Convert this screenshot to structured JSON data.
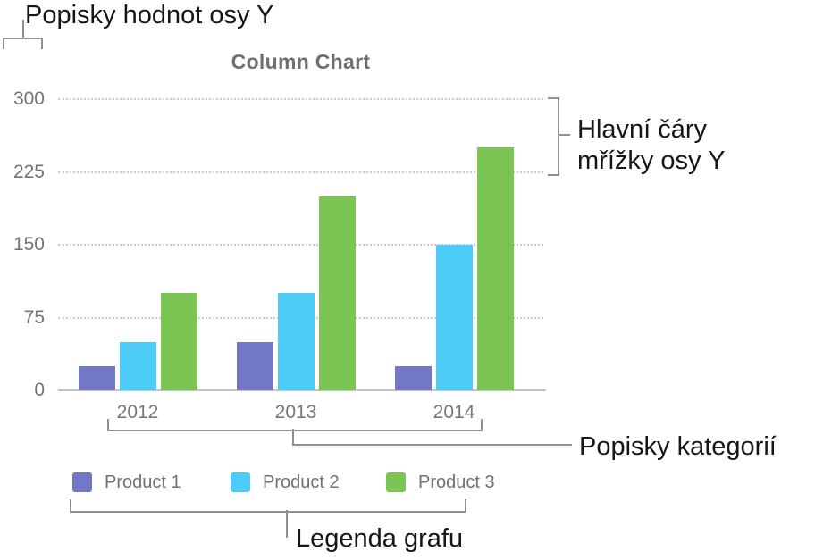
{
  "annotations": {
    "y_value_labels": "Popisky hodnot osy Y",
    "y_gridlines": "Hlavní čáry mřížky osy Y",
    "category_labels": "Popisky kategorií",
    "legend": "Legenda grafu"
  },
  "chart_data": {
    "type": "bar",
    "title": "Column Chart",
    "categories": [
      "2012",
      "2013",
      "2014"
    ],
    "series": [
      {
        "name": "Product 1",
        "color": "#7278C6",
        "values": [
          25,
          50,
          25
        ]
      },
      {
        "name": "Product 2",
        "color": "#4DCCF8",
        "values": [
          50,
          100,
          150
        ]
      },
      {
        "name": "Product 3",
        "color": "#7AC553",
        "values": [
          100,
          200,
          250
        ]
      }
    ],
    "xlabel": "",
    "ylabel": "",
    "yticks": [
      0,
      75,
      150,
      225,
      300
    ],
    "ylim": [
      0,
      300
    ],
    "grid": "horizontal-dotted",
    "legend_position": "bottom"
  },
  "colors": {
    "title_gray": "#6f6f71",
    "axis_text_gray": "#737476",
    "legend_text_gray": "#717274",
    "gridline_gray": "#cbcbcd",
    "baseline_gray": "#c4c4c6",
    "callout_line_gray": "#8f9091",
    "callout_text_black": "#161616"
  }
}
